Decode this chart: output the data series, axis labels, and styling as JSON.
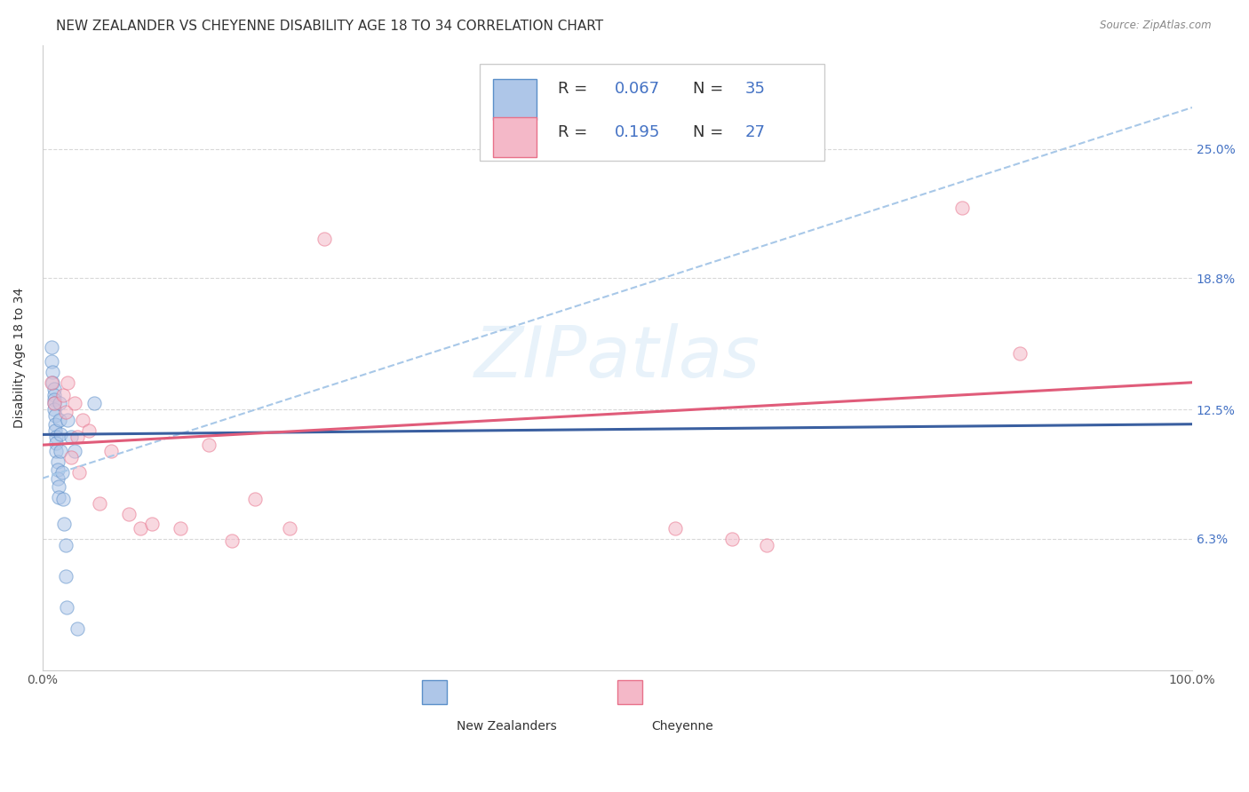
{
  "title": "NEW ZEALANDER VS CHEYENNE DISABILITY AGE 18 TO 34 CORRELATION CHART",
  "source": "Source: ZipAtlas.com",
  "ylabel": "Disability Age 18 to 34",
  "watermark": "ZIPatlas",
  "xlim": [
    0.0,
    1.0
  ],
  "ylim": [
    0.0,
    0.3
  ],
  "ytick_labels_right": [
    "6.3%",
    "12.5%",
    "18.8%",
    "25.0%"
  ],
  "ytick_vals_right": [
    0.063,
    0.125,
    0.188,
    0.25
  ],
  "nz_R": "0.067",
  "nz_N": "35",
  "ch_R": "0.195",
  "ch_N": "27",
  "nz_fill_color": "#aec6e8",
  "ch_fill_color": "#f4b8c8",
  "nz_edge_color": "#5b8fc9",
  "ch_edge_color": "#e8718a",
  "nz_line_color": "#3a5fa0",
  "ch_line_color": "#e05c7a",
  "dashed_line_color": "#a8c8e8",
  "right_tick_color": "#4472c4",
  "nz_scatter_x": [
    0.008,
    0.008,
    0.009,
    0.009,
    0.01,
    0.01,
    0.01,
    0.01,
    0.01,
    0.011,
    0.011,
    0.011,
    0.012,
    0.012,
    0.012,
    0.013,
    0.013,
    0.013,
    0.014,
    0.014,
    0.015,
    0.015,
    0.016,
    0.016,
    0.017,
    0.018,
    0.019,
    0.02,
    0.02,
    0.021,
    0.022,
    0.025,
    0.028,
    0.03,
    0.045
  ],
  "nz_scatter_y": [
    0.155,
    0.148,
    0.143,
    0.138,
    0.135,
    0.132,
    0.13,
    0.128,
    0.125,
    0.122,
    0.118,
    0.115,
    0.112,
    0.109,
    0.105,
    0.1,
    0.096,
    0.092,
    0.088,
    0.083,
    0.128,
    0.12,
    0.113,
    0.105,
    0.095,
    0.082,
    0.07,
    0.06,
    0.045,
    0.03,
    0.12,
    0.112,
    0.105,
    0.02,
    0.128
  ],
  "ch_scatter_x": [
    0.008,
    0.01,
    0.018,
    0.02,
    0.022,
    0.025,
    0.028,
    0.03,
    0.032,
    0.035,
    0.04,
    0.05,
    0.06,
    0.075,
    0.085,
    0.095,
    0.12,
    0.145,
    0.165,
    0.185,
    0.215,
    0.245,
    0.55,
    0.6,
    0.63,
    0.8,
    0.85
  ],
  "ch_scatter_y": [
    0.138,
    0.128,
    0.132,
    0.124,
    0.138,
    0.102,
    0.128,
    0.112,
    0.095,
    0.12,
    0.115,
    0.08,
    0.105,
    0.075,
    0.068,
    0.07,
    0.068,
    0.108,
    0.062,
    0.082,
    0.068,
    0.207,
    0.068,
    0.063,
    0.06,
    0.222,
    0.152
  ],
  "nz_trend_y_start": 0.113,
  "nz_trend_y_end": 0.118,
  "ch_trend_y_start": 0.108,
  "ch_trend_y_end": 0.138,
  "dashed_trend_y_start": 0.092,
  "dashed_trend_y_end": 0.27,
  "background_color": "#ffffff",
  "grid_color": "#d8d8d8",
  "title_fontsize": 11,
  "label_fontsize": 10,
  "tick_fontsize": 10,
  "legend_fontsize": 13,
  "scatter_size": 120,
  "scatter_alpha": 0.55,
  "legend_text_color": "#333333",
  "legend_value_color": "#4472c4"
}
